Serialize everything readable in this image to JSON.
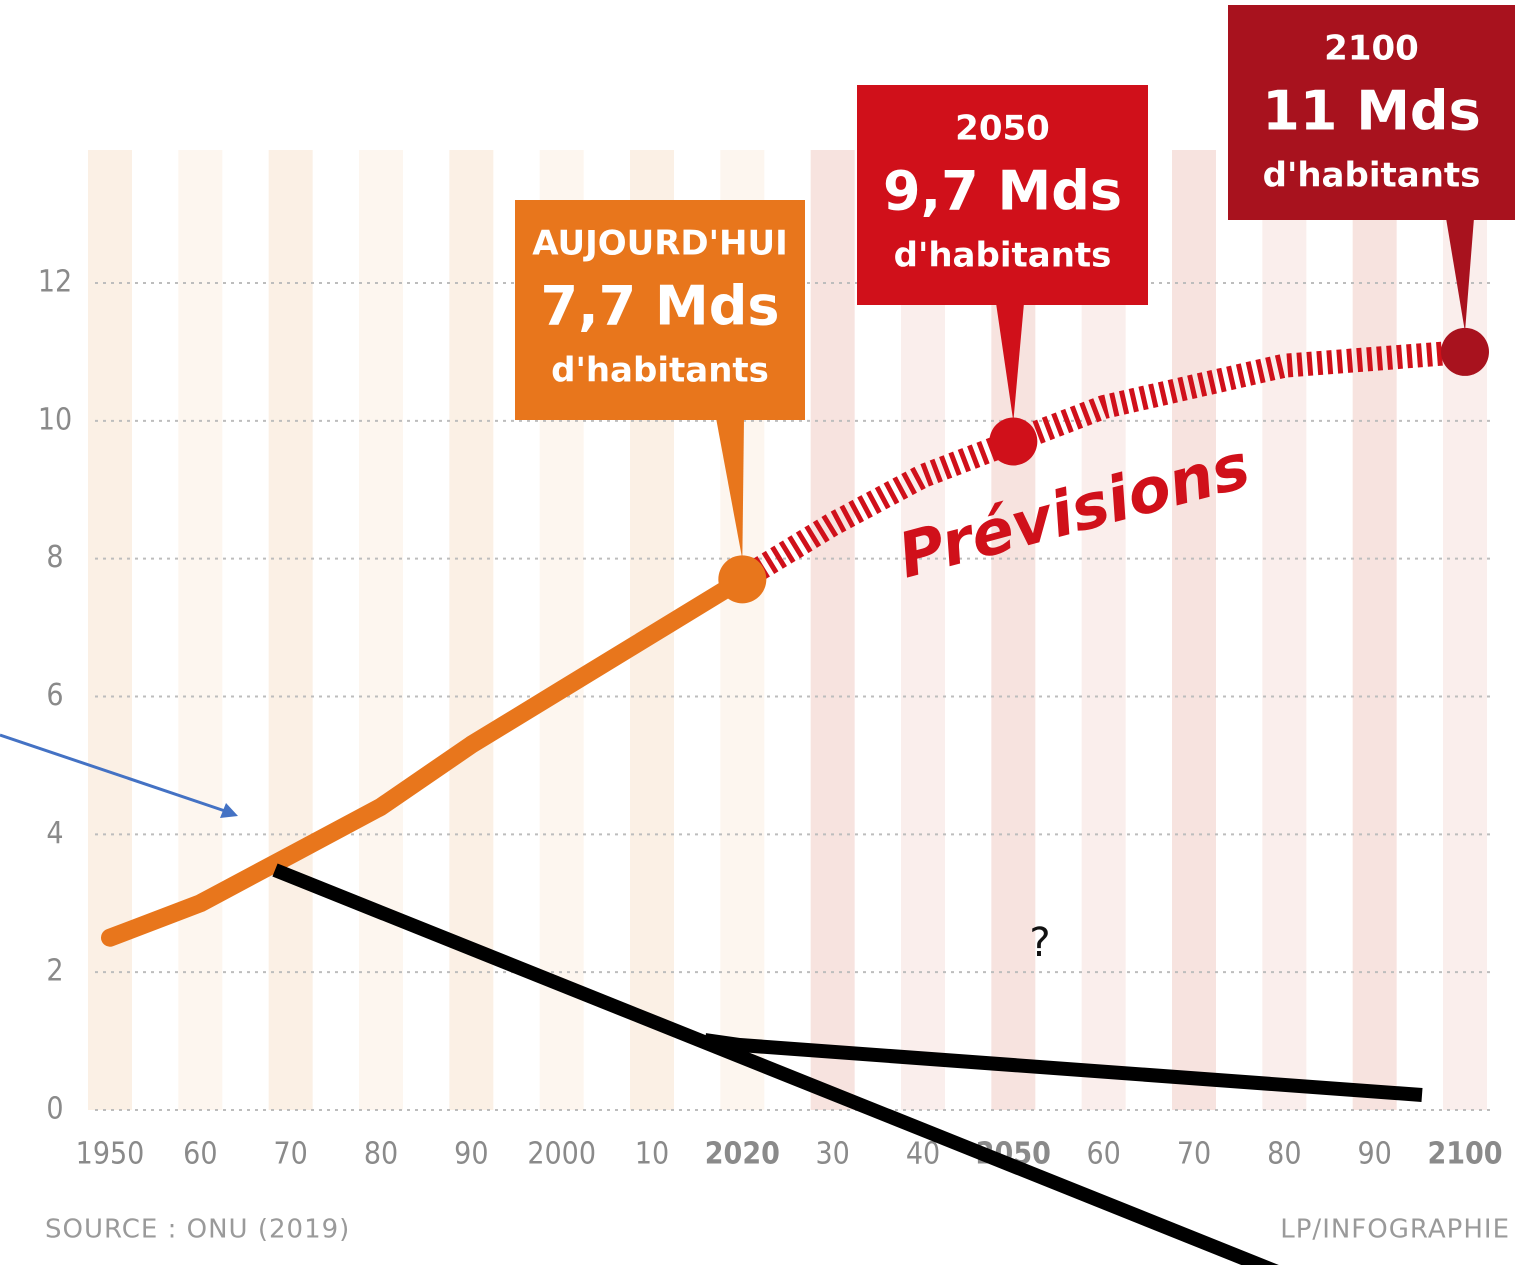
{
  "chart_data": {
    "type": "line",
    "x": [
      1950,
      1960,
      1970,
      1980,
      1990,
      2000,
      2010,
      2020,
      2030,
      2040,
      2050,
      2060,
      2070,
      2080,
      2090,
      2100
    ],
    "series": [
      {
        "color": "#e8761c",
        "values": [
          2.5,
          3.0,
          3.7,
          4.4,
          5.3,
          6.1,
          6.9,
          7.7,
          null,
          null,
          null,
          null,
          null,
          null,
          null,
          null
        ]
      },
      {
        "name": "Prévisions",
        "color": "#d0101a",
        "values": [
          null,
          null,
          null,
          null,
          null,
          null,
          null,
          7.7,
          8.5,
          9.2,
          9.7,
          10.2,
          10.5,
          10.8,
          10.9,
          11
        ]
      }
    ],
    "xlim": [
      1950,
      2100
    ],
    "xticks": [
      1950,
      {
        "value": 1960,
        "label": "60"
      },
      {
        "value": 1970,
        "label": "70"
      },
      {
        "value": 1980,
        "label": "80"
      },
      {
        "value": 1990,
        "label": "90"
      },
      2000,
      {
        "value": 2010,
        "label": "10"
      },
      2020,
      {
        "value": 2030,
        "label": "30"
      },
      {
        "value": 2040,
        "label": "40"
      },
      2050,
      {
        "value": 2060,
        "label": "60"
      },
      {
        "value": 2070,
        "label": "70"
      },
      {
        "value": 2080,
        "label": "80"
      },
      {
        "value": 2090,
        "label": "90"
      },
      2100
    ],
    "ylim": [
      0,
      12
    ],
    "yticks": [
      0,
      2,
      4,
      6,
      8,
      10,
      12
    ],
    "grid": true,
    "callouts": [
      {
        "x": 2020,
        "color": "#e8761c",
        "line1": "AUJOURD'HUI",
        "line2": "7,7 Mds",
        "line3": "d'habitants"
      },
      {
        "x": 2050,
        "color": "#d0101a",
        "line1": "2050",
        "line2": "9,7 Mds",
        "line3": "d'habitants"
      },
      {
        "x": 2100,
        "color": "#a8121e",
        "line1": "2100",
        "line2": "11 Mds",
        "line3": "d'habitants"
      }
    ],
    "note": "?",
    "source": "SOURCE : ONU (2019)",
    "credit": "LP/INFOGRAPHIE"
  }
}
